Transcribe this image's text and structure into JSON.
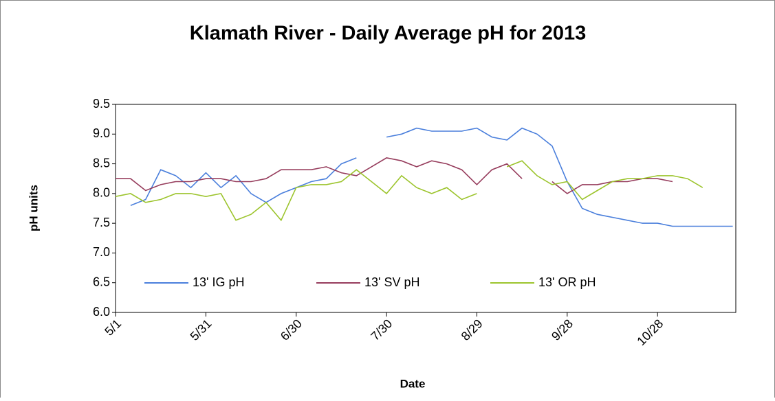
{
  "chart_data": {
    "type": "line",
    "title": "Klamath River - Daily Average pH for 2013",
    "x_label": "Date",
    "y_label": "pH units",
    "x": [
      0,
      5,
      10,
      15,
      20,
      25,
      30,
      35,
      40,
      45,
      50,
      55,
      60,
      65,
      70,
      75,
      80,
      85,
      90,
      95,
      100,
      105,
      110,
      115,
      120,
      125,
      130,
      135,
      140,
      145,
      150,
      155,
      160,
      165,
      170,
      175,
      180,
      185,
      190,
      195,
      200,
      205
    ],
    "xlim": [
      0,
      206
    ],
    "xticks": [
      {
        "value": 0,
        "label": "5/1"
      },
      {
        "value": 30,
        "label": "5/31"
      },
      {
        "value": 60,
        "label": "6/30"
      },
      {
        "value": 90,
        "label": "7/30"
      },
      {
        "value": 120,
        "label": "8/29"
      },
      {
        "value": 150,
        "label": "9/28"
      },
      {
        "value": 180,
        "label": "10/28"
      }
    ],
    "ylim": [
      6,
      9.5
    ],
    "yticks": [
      {
        "value": 6,
        "label": "6.0"
      },
      6.5,
      {
        "value": 7,
        "label": "7.0"
      },
      7.5,
      {
        "value": 8,
        "label": "8.0"
      },
      8.5,
      {
        "value": 9,
        "label": "9.0"
      },
      9.5
    ],
    "grid": false,
    "series": [
      {
        "name": "13' IG pH",
        "color": "#4a7fdc",
        "values": [
          null,
          7.8,
          7.9,
          8.4,
          8.3,
          8.1,
          8.35,
          8.1,
          8.3,
          8.0,
          7.85,
          8.0,
          8.1,
          8.2,
          8.25,
          8.5,
          8.6,
          null,
          8.95,
          9.0,
          9.1,
          9.05,
          9.05,
          9.05,
          9.1,
          8.95,
          8.9,
          9.1,
          9.0,
          8.8,
          8.2,
          7.75,
          7.65,
          7.6,
          7.55,
          7.5,
          7.5,
          7.45,
          7.45,
          7.45,
          7.45,
          7.45
        ]
      },
      {
        "name": "13' SV pH",
        "color": "#963c5c",
        "values": [
          8.25,
          8.25,
          8.05,
          8.15,
          8.2,
          8.2,
          8.25,
          8.25,
          8.2,
          8.2,
          8.25,
          8.4,
          8.4,
          8.4,
          8.45,
          8.35,
          8.3,
          8.45,
          8.6,
          8.55,
          8.45,
          8.55,
          8.5,
          8.4,
          8.15,
          8.4,
          8.5,
          8.25,
          null,
          8.2,
          8.0,
          8.15,
          8.15,
          8.2,
          8.2,
          8.25,
          8.25,
          8.2,
          null,
          null,
          null,
          null
        ]
      },
      {
        "name": "13' OR pH",
        "color": "#9cc42c",
        "values": [
          7.95,
          8.0,
          7.85,
          7.9,
          8.0,
          8.0,
          7.95,
          8.0,
          7.55,
          7.65,
          7.85,
          7.55,
          8.1,
          8.15,
          8.15,
          8.2,
          8.4,
          8.2,
          8.0,
          8.3,
          8.1,
          8.0,
          8.1,
          7.9,
          8.0,
          null,
          8.45,
          8.55,
          8.3,
          8.15,
          8.2,
          7.9,
          8.05,
          8.2,
          8.25,
          8.25,
          8.3,
          8.3,
          8.25,
          8.1,
          null,
          null
        ]
      }
    ]
  }
}
